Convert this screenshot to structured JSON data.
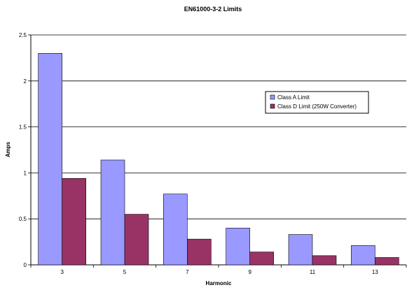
{
  "chart_data": {
    "type": "bar",
    "title": "EN61000-3-2 Limits",
    "xlabel": "Harmonic",
    "ylabel": "Amps",
    "categories": [
      "3",
      "5",
      "7",
      "9",
      "11",
      "13"
    ],
    "series": [
      {
        "name": "Class A Limit",
        "color": "#9999ff",
        "values": [
          2.3,
          1.14,
          0.77,
          0.4,
          0.33,
          0.21
        ]
      },
      {
        "name": "Class D Limit (250W Converter)",
        "color": "#993366",
        "values": [
          0.94,
          0.55,
          0.28,
          0.14,
          0.1,
          0.08
        ]
      }
    ],
    "ylim": [
      0,
      2.5
    ],
    "yticks": [
      "0",
      "0.5",
      "1",
      "1.5",
      "2",
      "2.5"
    ],
    "grid": true,
    "legend_position": "right"
  }
}
